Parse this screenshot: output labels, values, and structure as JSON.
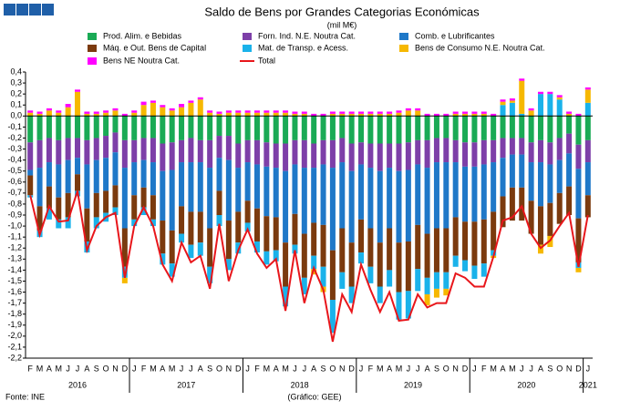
{
  "chart_data": {
    "type": "stacked-bar",
    "title": "Saldo de Bens por Grandes Categorias Económicas",
    "subtitle": "(mil M€)",
    "source": "Fonte: INE",
    "credit": "(Gráfico: GEE)",
    "categories": [
      "F",
      "M",
      "A",
      "M",
      "J",
      "J",
      "A",
      "S",
      "O",
      "N",
      "D",
      "J",
      "F",
      "M",
      "A",
      "M",
      "J",
      "J",
      "A",
      "S",
      "O",
      "N",
      "D",
      "J",
      "F",
      "M",
      "A",
      "M",
      "J",
      "J",
      "A",
      "S",
      "O",
      "N",
      "D",
      "J",
      "F",
      "M",
      "A",
      "M",
      "J",
      "J",
      "A",
      "S",
      "O",
      "N",
      "D",
      "J",
      "F",
      "M",
      "A",
      "M",
      "J",
      "J",
      "A",
      "S",
      "O",
      "N",
      "D",
      "J"
    ],
    "years": [
      "2016",
      "2017",
      "2018",
      "2019",
      "2020",
      "2021"
    ],
    "ylim": [
      -2.2,
      0.4
    ],
    "yticks": [
      {
        "value": 0.4,
        "label": "0,4"
      },
      {
        "value": 0.3,
        "label": "0,3"
      },
      {
        "value": 0.2,
        "label": "0,2"
      },
      {
        "value": 0.1,
        "label": "0,1"
      },
      {
        "value": 0,
        "label": "0,0"
      },
      {
        "value": -0.1,
        "label": "-0,1"
      },
      {
        "value": -0.2,
        "label": "-0,2"
      },
      {
        "value": -0.3,
        "label": "-0,3"
      },
      {
        "value": -0.4,
        "label": "-0,4"
      },
      {
        "value": -0.5,
        "label": "-0,5"
      },
      {
        "value": -0.6,
        "label": "-0,6"
      },
      {
        "value": -0.7,
        "label": "-0,7"
      },
      {
        "value": -0.8,
        "label": "-0,8"
      },
      {
        "value": -0.9,
        "label": "-0,9"
      },
      {
        "value": -1.0,
        "label": "-1,0"
      },
      {
        "value": -1.1,
        "label": "-1,1"
      },
      {
        "value": -1.2,
        "label": "-1,2"
      },
      {
        "value": -1.3,
        "label": "-1,3"
      },
      {
        "value": -1.4,
        "label": "-1,4"
      },
      {
        "value": -1.5,
        "label": "-1,5"
      },
      {
        "value": -1.6,
        "label": "-1,6"
      },
      {
        "value": -1.7,
        "label": "-1,7"
      },
      {
        "value": -1.8,
        "label": "-1,8"
      },
      {
        "value": -1.9,
        "label": "-1,9"
      },
      {
        "value": -2.0,
        "label": "-2,0"
      },
      {
        "value": -2.1,
        "label": "-2,1"
      },
      {
        "value": -2.2,
        "label": "-2,2"
      }
    ],
    "series": [
      {
        "name": "Prod. Alim. e Bebidas",
        "color": "#1aaa55",
        "values": [
          -0.24,
          -0.22,
          -0.2,
          -0.22,
          -0.2,
          -0.2,
          -0.22,
          -0.2,
          -0.18,
          -0.15,
          -0.22,
          -0.22,
          -0.2,
          -0.2,
          -0.25,
          -0.24,
          -0.22,
          -0.2,
          -0.22,
          -0.22,
          -0.18,
          -0.18,
          -0.25,
          -0.22,
          -0.22,
          -0.24,
          -0.25,
          -0.25,
          -0.22,
          -0.22,
          -0.25,
          -0.22,
          -0.22,
          -0.2,
          -0.25,
          -0.24,
          -0.25,
          -0.25,
          -0.25,
          -0.25,
          -0.24,
          -0.22,
          -0.22,
          -0.2,
          -0.2,
          -0.22,
          -0.24,
          -0.24,
          -0.22,
          -0.22,
          -0.2,
          -0.2,
          -0.2,
          -0.24,
          -0.22,
          -0.24,
          -0.2,
          -0.16,
          -0.26,
          -0.22
        ]
      },
      {
        "name": "Forn. Ind. N.E. Noutra Cat.",
        "color": "#7d3fa8",
        "values": [
          -0.25,
          -0.25,
          -0.22,
          -0.22,
          -0.2,
          -0.18,
          -0.22,
          -0.2,
          -0.2,
          -0.18,
          -0.25,
          -0.2,
          -0.2,
          -0.22,
          -0.25,
          -0.25,
          -0.2,
          -0.22,
          -0.2,
          -0.25,
          -0.2,
          -0.22,
          -0.22,
          -0.2,
          -0.22,
          -0.22,
          -0.22,
          -0.25,
          -0.22,
          -0.25,
          -0.22,
          -0.22,
          -0.25,
          -0.22,
          -0.25,
          -0.2,
          -0.22,
          -0.25,
          -0.22,
          -0.25,
          -0.25,
          -0.22,
          -0.25,
          -0.22,
          -0.22,
          -0.2,
          -0.22,
          -0.22,
          -0.22,
          -0.2,
          -0.18,
          -0.15,
          -0.15,
          -0.18,
          -0.2,
          -0.2,
          -0.2,
          -0.18,
          -0.22,
          -0.2
        ]
      },
      {
        "name": "Comb. e Lubrificantes",
        "color": "#1f78c8",
        "values": [
          -0.05,
          -0.35,
          -0.22,
          -0.3,
          -0.3,
          -0.15,
          -0.4,
          -0.3,
          -0.3,
          -0.3,
          -0.55,
          -0.3,
          -0.25,
          -0.3,
          -0.45,
          -0.55,
          -0.4,
          -0.45,
          -0.45,
          -0.55,
          -0.3,
          -0.55,
          -0.4,
          -0.35,
          -0.4,
          -0.45,
          -0.45,
          -0.65,
          -0.45,
          -0.6,
          -0.5,
          -0.55,
          -0.75,
          -0.6,
          -0.65,
          -0.5,
          -0.55,
          -0.65,
          -0.55,
          -0.65,
          -0.65,
          -0.55,
          -0.6,
          -0.6,
          -0.6,
          -0.5,
          -0.5,
          -0.5,
          -0.5,
          -0.45,
          -0.35,
          -0.3,
          -0.3,
          -0.35,
          -0.4,
          -0.35,
          -0.3,
          -0.3,
          -0.45,
          -0.3
        ]
      },
      {
        "name": "Máq. e Out. Bens de Capital",
        "color": "#7b3a0e",
        "values": [
          -0.18,
          -0.22,
          -0.2,
          -0.2,
          -0.22,
          -0.15,
          -0.3,
          -0.22,
          -0.2,
          -0.2,
          -0.35,
          -0.22,
          -0.18,
          -0.22,
          -0.3,
          -0.3,
          -0.25,
          -0.3,
          -0.28,
          -0.35,
          -0.22,
          -0.35,
          -0.28,
          -0.2,
          -0.3,
          -0.32,
          -0.3,
          -0.4,
          -0.28,
          -0.4,
          -0.3,
          -0.38,
          -0.45,
          -0.4,
          -0.4,
          -0.3,
          -0.35,
          -0.4,
          -0.38,
          -0.45,
          -0.45,
          -0.4,
          -0.4,
          -0.4,
          -0.4,
          -0.35,
          -0.35,
          -0.4,
          -0.4,
          -0.35,
          -0.28,
          -0.3,
          -0.3,
          -0.3,
          -0.35,
          -0.3,
          -0.28,
          -0.26,
          -0.4,
          -0.2
        ]
      },
      {
        "name": "Mat. de Transp. e Acess.",
        "color": "#1ab2ea",
        "values": [
          -0.02,
          -0.06,
          -0.1,
          -0.08,
          -0.1,
          -0.05,
          -0.1,
          -0.1,
          -0.08,
          -0.07,
          -0.1,
          -0.06,
          -0.07,
          -0.06,
          -0.1,
          -0.12,
          -0.08,
          -0.12,
          -0.12,
          -0.15,
          -0.1,
          -0.1,
          -0.1,
          -0.08,
          -0.1,
          -0.12,
          -0.1,
          -0.18,
          -0.08,
          -0.15,
          -0.12,
          -0.18,
          -0.3,
          -0.15,
          -0.15,
          -0.1,
          -0.15,
          -0.15,
          -0.15,
          -0.25,
          -0.25,
          -0.2,
          -0.15,
          -0.15,
          -0.15,
          -0.1,
          -0.1,
          -0.12,
          -0.12,
          -0.05,
          0.1,
          0.12,
          0.02,
          0,
          0.2,
          0.2,
          0.15,
          0,
          -0.05,
          0.12
        ]
      },
      {
        "name": "Bens de Consumo N.E. Noutra Cat.",
        "color": "#f6b800",
        "values": [
          0.03,
          0.02,
          0.05,
          0.03,
          0.08,
          0.22,
          0.02,
          0.02,
          0.03,
          0.05,
          -0.05,
          0.03,
          0.1,
          0.12,
          0.08,
          0.05,
          0.08,
          0.12,
          0.15,
          0.03,
          0.02,
          0.03,
          0.03,
          0.03,
          0.03,
          0.03,
          0.03,
          0.03,
          0.02,
          0.02,
          -0.05,
          -0.05,
          0.02,
          0.02,
          0.02,
          0.02,
          0.02,
          0.02,
          0.02,
          0.03,
          0.05,
          0.05,
          -0.1,
          -0.08,
          -0.06,
          0.02,
          0.02,
          0.02,
          0.02,
          -0.02,
          0.03,
          0.02,
          0.3,
          0.05,
          -0.08,
          -0.1,
          0.02,
          0.02,
          -0.04,
          0.12
        ]
      },
      {
        "name": "Bens NE Noutra Cat.",
        "color": "#ff00ff",
        "values": [
          0.02,
          0.02,
          0.02,
          0.02,
          0.03,
          0.02,
          0.02,
          0.02,
          0.02,
          0.02,
          0.02,
          0.02,
          0.03,
          0.02,
          0.02,
          0.02,
          0.03,
          0.02,
          0.02,
          0.02,
          0.02,
          0.02,
          0.02,
          0.02,
          0.02,
          0.02,
          0.02,
          0.02,
          0.02,
          0.02,
          0.02,
          0.02,
          0.02,
          0.02,
          0.02,
          0.02,
          0.02,
          0.02,
          0.02,
          0.02,
          0.02,
          0.02,
          0.02,
          0.02,
          0.02,
          0.02,
          0.02,
          0.02,
          0.02,
          0.02,
          0.02,
          0.02,
          0.02,
          0.02,
          0.02,
          0.02,
          0.02,
          0.02,
          0.02,
          0.02
        ]
      },
      {
        "name": "Total",
        "color": "#e8161b",
        "line": true,
        "values": [
          -0.72,
          -1.08,
          -0.82,
          -0.96,
          -0.95,
          -0.68,
          -1.22,
          -1.0,
          -0.92,
          -0.88,
          -1.47,
          -1.0,
          -0.83,
          -1.0,
          -1.35,
          -1.5,
          -1.15,
          -1.33,
          -1.27,
          -1.57,
          -0.98,
          -1.5,
          -1.22,
          -1.03,
          -1.25,
          -1.38,
          -1.3,
          -1.77,
          -1.22,
          -1.7,
          -1.38,
          -1.58,
          -2.05,
          -1.62,
          -1.78,
          -1.35,
          -1.58,
          -1.78,
          -1.6,
          -1.86,
          -1.85,
          -1.62,
          -1.74,
          -1.7,
          -1.7,
          -1.43,
          -1.47,
          -1.55,
          -1.55,
          -1.28,
          -0.95,
          -0.92,
          -0.82,
          -1.07,
          -1.2,
          -1.13,
          -1.0,
          -0.88,
          -1.37,
          -0.9
        ]
      }
    ]
  }
}
